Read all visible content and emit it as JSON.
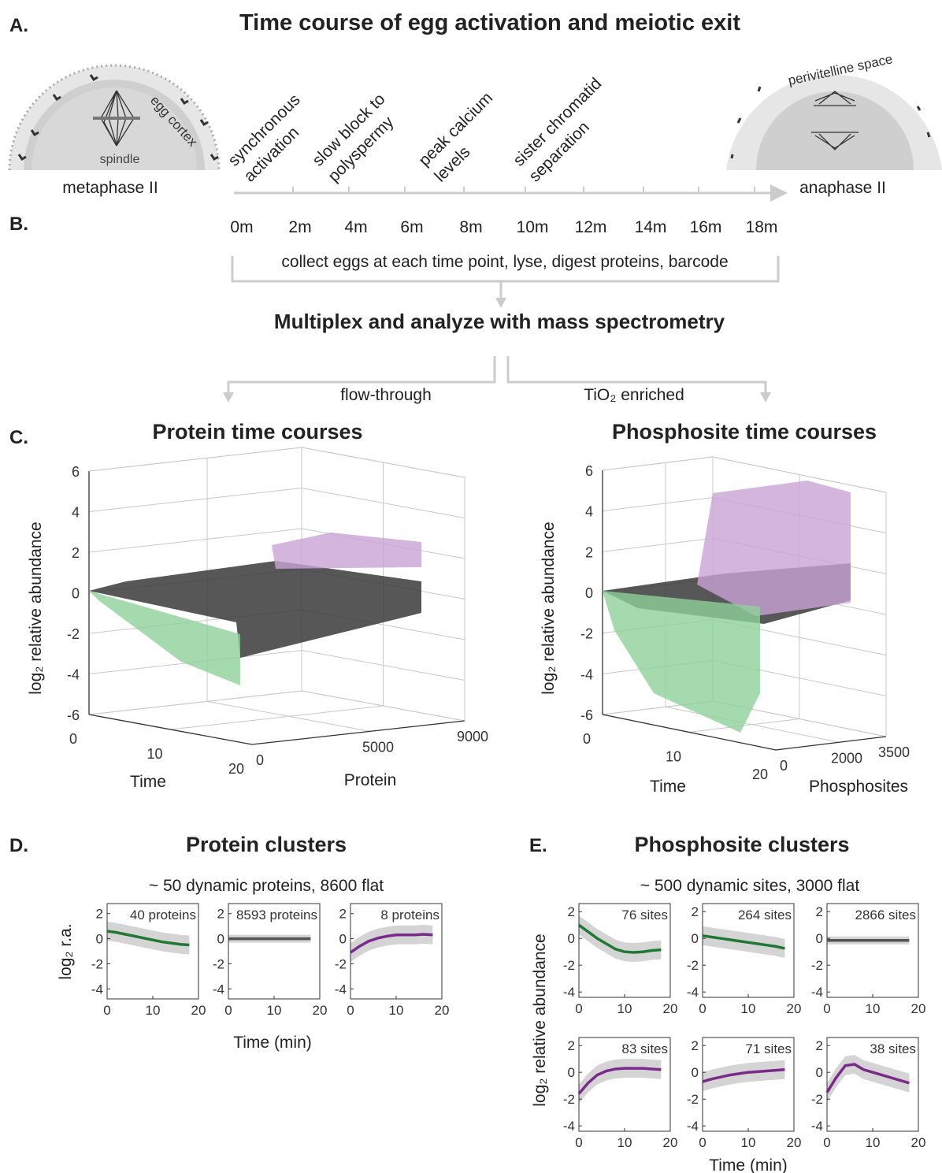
{
  "panel_a": {
    "label": "A.",
    "title": "Time course of egg activation and meiotic exit",
    "left_egg": {
      "caption": "metaphase II",
      "spindle": "spindle",
      "cortex": "egg cortex"
    },
    "right_egg": {
      "caption": "anaphase II",
      "space": "perivitelline space"
    },
    "events": [
      [
        "synchronous",
        "activation"
      ],
      [
        "slow block to",
        "polyspermy"
      ],
      [
        "peak calcium",
        "levels"
      ],
      [
        "sister chromatid",
        "separation"
      ]
    ],
    "times": [
      "0m",
      "2m",
      "4m",
      "6m",
      "8m",
      "10m",
      "12m",
      "14m",
      "16m",
      "18m"
    ]
  },
  "panel_b": {
    "label": "B.",
    "step": "collect eggs at each time point, lyse, digest proteins, barcode",
    "title": "Multiplex and analyze with mass spectrometry",
    "branches": [
      "flow-through",
      "TiO₂ enriched"
    ]
  },
  "panel_c": {
    "label": "C.",
    "charts": [
      {
        "type": "line3d",
        "title": "Protein time courses",
        "zlabel": "log₂ relative abundance",
        "xlabel": "Time",
        "ylabel": "Protein",
        "xlim": [
          0,
          20
        ],
        "xticks": [
          0,
          10,
          20
        ],
        "ylim": [
          0,
          9000
        ],
        "yticks": [
          0,
          5000,
          9000
        ],
        "zlim": [
          -6,
          6
        ],
        "zticks": [
          -6,
          -4,
          -2,
          0,
          2,
          4,
          6
        ]
      },
      {
        "type": "line3d",
        "title": "Phosphosite time courses",
        "zlabel": "log₂ relative abundance",
        "xlabel": "Time",
        "ylabel": "Phosphosites",
        "xlim": [
          0,
          20
        ],
        "xticks": [
          0,
          10,
          20
        ],
        "ylim": [
          0,
          3500
        ],
        "yticks": [
          0,
          2000,
          3500
        ],
        "zlim": [
          -6,
          6
        ],
        "zticks": [
          -6,
          -4,
          -2,
          0,
          2,
          4,
          6
        ]
      }
    ]
  },
  "panel_d": {
    "label": "D.",
    "title": "Protein clusters",
    "subtitle": "~ 50 dynamic proteins, 8600 flat",
    "ylabel": "log₂ r.a.",
    "xlabel": "Time (min)",
    "charts": [
      {
        "type": "line",
        "annotation": "40 proteins",
        "color": "#1e7a32",
        "x": [
          0,
          2,
          4,
          6,
          8,
          10,
          12,
          14,
          16,
          18
        ],
        "values": [
          0.6,
          0.5,
          0.35,
          0.2,
          0.05,
          -0.1,
          -0.25,
          -0.35,
          -0.45,
          -0.5
        ],
        "xlim": [
          0,
          20
        ],
        "xticks": [
          0,
          10,
          20
        ],
        "ylim": [
          -4.8,
          2.8
        ],
        "yticks": [
          2,
          0,
          -2,
          -4
        ]
      },
      {
        "type": "line",
        "annotation": "8593 proteins",
        "color": "#555555",
        "x": [
          0,
          2,
          4,
          6,
          8,
          10,
          12,
          14,
          16,
          18
        ],
        "values": [
          0,
          0,
          0,
          0,
          0,
          0,
          0,
          0,
          0,
          0
        ],
        "xlim": [
          0,
          20
        ],
        "xticks": [
          0,
          10,
          20
        ],
        "ylim": [
          -4.8,
          2.8
        ],
        "yticks": [
          2,
          0,
          -2,
          -4
        ]
      },
      {
        "type": "line",
        "annotation": "8 proteins",
        "color": "#7b2a8c",
        "x": [
          0,
          2,
          4,
          6,
          8,
          10,
          12,
          14,
          16,
          18
        ],
        "values": [
          -1.1,
          -0.6,
          -0.2,
          0.05,
          0.2,
          0.3,
          0.3,
          0.3,
          0.35,
          0.3
        ],
        "xlim": [
          0,
          20
        ],
        "xticks": [
          0,
          10,
          20
        ],
        "ylim": [
          -4.8,
          2.8
        ],
        "yticks": [
          2,
          0,
          -2,
          -4
        ]
      }
    ]
  },
  "panel_e": {
    "label": "E.",
    "title": "Phosphosite clusters",
    "subtitle": "~ 500 dynamic sites, 3000 flat",
    "ylabel": "log₂ relative abundance",
    "xlabel": "Time (min)",
    "charts": [
      {
        "type": "line",
        "annotation": "76 sites",
        "color": "#1e7a32",
        "x": [
          0,
          2,
          4,
          6,
          8,
          10,
          12,
          14,
          16,
          18
        ],
        "values": [
          1.0,
          0.5,
          0,
          -0.4,
          -0.8,
          -1.0,
          -1.05,
          -1.0,
          -0.9,
          -0.85
        ],
        "xlim": [
          0,
          20
        ],
        "xticks": [
          0,
          10,
          20
        ],
        "ylim": [
          -4.4,
          2.6
        ],
        "yticks": [
          2,
          0,
          -2,
          -4
        ]
      },
      {
        "type": "line",
        "annotation": "264 sites",
        "color": "#1e7a32",
        "x": [
          0,
          2,
          4,
          6,
          8,
          10,
          12,
          14,
          16,
          18
        ],
        "values": [
          0.2,
          0.1,
          0,
          -0.1,
          -0.2,
          -0.3,
          -0.4,
          -0.5,
          -0.6,
          -0.75
        ],
        "xlim": [
          0,
          20
        ],
        "xticks": [
          0,
          10,
          20
        ],
        "ylim": [
          -4.4,
          2.6
        ],
        "yticks": [
          2,
          0,
          -2,
          -4
        ]
      },
      {
        "type": "line",
        "annotation": "2866 sites",
        "color": "#555555",
        "x": [
          0,
          2,
          4,
          6,
          8,
          10,
          12,
          14,
          16,
          18
        ],
        "values": [
          -0.15,
          -0.15,
          -0.15,
          -0.15,
          -0.15,
          -0.15,
          -0.15,
          -0.15,
          -0.15,
          -0.15
        ],
        "xlim": [
          0,
          20
        ],
        "xticks": [
          0,
          10,
          20
        ],
        "ylim": [
          -4.4,
          2.6
        ],
        "yticks": [
          2,
          0,
          -2,
          -4
        ]
      },
      {
        "type": "line",
        "annotation": "83 sites",
        "color": "#7b2a8c",
        "x": [
          0,
          2,
          4,
          6,
          8,
          10,
          12,
          14,
          16,
          18
        ],
        "values": [
          -1.6,
          -0.8,
          -0.2,
          0.1,
          0.25,
          0.3,
          0.3,
          0.3,
          0.25,
          0.2
        ],
        "xlim": [
          0,
          20
        ],
        "xticks": [
          0,
          10,
          20
        ],
        "ylim": [
          -4.4,
          2.6
        ],
        "yticks": [
          2,
          0,
          -2,
          -4
        ]
      },
      {
        "type": "line",
        "annotation": "71 sites",
        "color": "#7b2a8c",
        "x": [
          0,
          2,
          4,
          6,
          8,
          10,
          12,
          14,
          16,
          18
        ],
        "values": [
          -0.7,
          -0.5,
          -0.35,
          -0.2,
          -0.1,
          0,
          0.05,
          0.1,
          0.15,
          0.2
        ],
        "xlim": [
          0,
          20
        ],
        "xticks": [
          0,
          10,
          20
        ],
        "ylim": [
          -4.4,
          2.6
        ],
        "yticks": [
          2,
          0,
          -2,
          -4
        ]
      },
      {
        "type": "line",
        "annotation": "38 sites",
        "color": "#7b2a8c",
        "x": [
          0,
          2,
          4,
          6,
          8,
          10,
          12,
          14,
          16,
          18
        ],
        "values": [
          -1.5,
          -0.4,
          0.5,
          0.6,
          0.2,
          0,
          -0.2,
          -0.4,
          -0.6,
          -0.8
        ],
        "xlim": [
          0,
          20
        ],
        "xticks": [
          0,
          10,
          20
        ],
        "ylim": [
          -4.4,
          2.6
        ],
        "yticks": [
          2,
          0,
          -2,
          -4
        ]
      }
    ]
  }
}
